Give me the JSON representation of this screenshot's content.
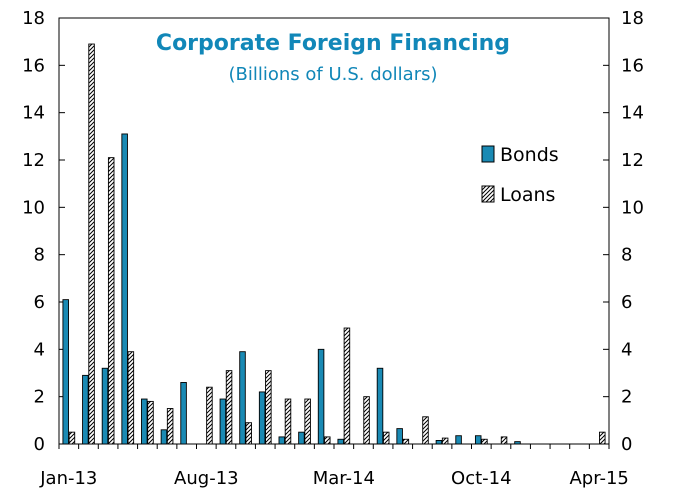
{
  "chart_data": {
    "type": "bar",
    "title": "Corporate Foreign Financing",
    "subtitle": "(Billions of U.S. dollars)",
    "xlabel": "",
    "ylabel": "",
    "ylim": [
      0,
      18
    ],
    "yticks": [
      0,
      2,
      4,
      6,
      8,
      10,
      12,
      14,
      16,
      18
    ],
    "x_tick_labels": [
      {
        "index": 0,
        "label": "Jan-13"
      },
      {
        "index": 7,
        "label": "Aug-13"
      },
      {
        "index": 14,
        "label": "Mar-14"
      },
      {
        "index": 21,
        "label": "Oct-14"
      },
      {
        "index": 27,
        "label": "Apr-15"
      }
    ],
    "categories": [
      "Jan-13",
      "Feb-13",
      "Mar-13",
      "Apr-13",
      "May-13",
      "Jun-13",
      "Jul-13",
      "Aug-13",
      "Sep-13",
      "Oct-13",
      "Nov-13",
      "Dec-13",
      "Jan-14",
      "Feb-14",
      "Mar-14",
      "Apr-14",
      "May-14",
      "Jun-14",
      "Jul-14",
      "Aug-14",
      "Sep-14",
      "Oct-14",
      "Nov-14",
      "Dec-14",
      "Jan-15",
      "Feb-15",
      "Mar-15",
      "Apr-15"
    ],
    "series": [
      {
        "name": "Bonds",
        "color": "#1a8ab4",
        "values": [
          6.1,
          2.9,
          3.2,
          13.1,
          1.9,
          0.6,
          2.6,
          0.0,
          1.9,
          3.9,
          2.2,
          0.3,
          0.5,
          4.0,
          0.2,
          0.0,
          3.2,
          0.65,
          0.0,
          0.15,
          0.35,
          0.35,
          0.0,
          0.1,
          0.0,
          0.0,
          0.0,
          0.0
        ]
      },
      {
        "name": "Loans",
        "color": "#ffffff",
        "values": [
          0.5,
          16.9,
          12.1,
          3.9,
          1.8,
          1.5,
          0.0,
          2.4,
          3.1,
          0.9,
          3.1,
          1.9,
          1.9,
          0.3,
          4.9,
          2.0,
          0.5,
          0.2,
          1.15,
          0.25,
          0.0,
          0.2,
          0.3,
          0.0,
          0.0,
          0.0,
          0.0,
          0.5
        ]
      }
    ],
    "legend": "right"
  }
}
